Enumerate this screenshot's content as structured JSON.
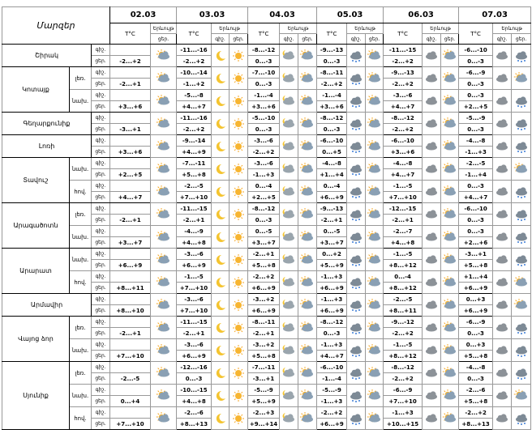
{
  "header": {
    "region": "Մարզեր",
    "temp": "T°C",
    "phenomenon": "Երևույթ",
    "night": "գիշ.",
    "day": "ցեր."
  },
  "dates": [
    "02.03",
    "03.03",
    "04.03",
    "05.03",
    "06.03",
    "07.03"
  ],
  "regions": [
    {
      "name": "Շիրակ",
      "zones": [
        {
          "temps": [
            [
              null,
              "-2...+2"
            ],
            [
              "-11...-16",
              "-2...+2"
            ],
            [
              "-8...-12",
              "0...-3"
            ],
            [
              "-9...-13",
              "0...-3"
            ],
            [
              "-11...-15",
              "-2...+2"
            ],
            [
              "-6...-10",
              "0...-3"
            ]
          ]
        }
      ]
    },
    {
      "name": "Կոտայք",
      "zones": [
        {
          "name": "լեռ.",
          "temps": [
            [
              null,
              "-2...+1"
            ],
            [
              "-10...-14",
              "-1...+2"
            ],
            [
              "-7...-10",
              "0...-3"
            ],
            [
              "-8...-11",
              "-2...+2"
            ],
            [
              "-9...-13",
              "-2...+2"
            ],
            [
              "-6...-9",
              "0...-3"
            ]
          ]
        },
        {
          "name": "նախ.",
          "temps": [
            [
              null,
              "+3...+6"
            ],
            [
              "-5...-8",
              "+4...+7"
            ],
            [
              "-1...-4",
              "+3...+6"
            ],
            [
              "-1...-4",
              "+3...+6"
            ],
            [
              "-3...-6",
              "+4...+7"
            ],
            [
              "0...-3",
              "+2...+5"
            ]
          ]
        }
      ]
    },
    {
      "name": "Գեղարքունիք",
      "zones": [
        {
          "temps": [
            [
              null,
              "-3...+1"
            ],
            [
              "-11...-16",
              "-2...+2"
            ],
            [
              "-5...-10",
              "0...-3"
            ],
            [
              "-8...-12",
              "0...-3"
            ],
            [
              "-8...-12",
              "-2...+2"
            ],
            [
              "-5...-9",
              "0...-3"
            ]
          ]
        }
      ]
    },
    {
      "name": "Լոռի",
      "zones": [
        {
          "temps": [
            [
              null,
              "+3...+6"
            ],
            [
              "-9...-14",
              "+4...+9"
            ],
            [
              "-3...-6",
              "-2...+2"
            ],
            [
              "-6...-10",
              "0...+5"
            ],
            [
              "-6...-10",
              "+3...+6"
            ],
            [
              "-4...-8",
              "-1...+3"
            ]
          ]
        }
      ]
    },
    {
      "name": "Տավուշ",
      "zones": [
        {
          "name": "նախ.",
          "temps": [
            [
              null,
              "+2...+5"
            ],
            [
              "-7...-11",
              "+5...+8"
            ],
            [
              "-3...-6",
              "-1...+3"
            ],
            [
              "-4...-8",
              "+1...+4"
            ],
            [
              "-4...-8",
              "+4...+7"
            ],
            [
              "-2...-5",
              "-1...+4"
            ]
          ]
        },
        {
          "name": "հով.",
          "temps": [
            [
              null,
              "+4...+7"
            ],
            [
              "-2...-5",
              "+7...+10"
            ],
            [
              "0...-4",
              "+2...+5"
            ],
            [
              "0...-4",
              "+6...+9"
            ],
            [
              "-1...-5",
              "+7...+10"
            ],
            [
              "0...-3",
              "+4...+7"
            ]
          ]
        }
      ]
    },
    {
      "name": "Արագածոտն",
      "zones": [
        {
          "name": "լեռ.",
          "temps": [
            [
              null,
              "-2...+1"
            ],
            [
              "-11...-15",
              "-2...+1"
            ],
            [
              "-8...-12",
              "0...-3"
            ],
            [
              "-9...-13",
              "-2...+1"
            ],
            [
              "-12...-15",
              "-2...+1"
            ],
            [
              "-6...-10",
              "0...-3"
            ]
          ]
        },
        {
          "name": "նախ.",
          "temps": [
            [
              null,
              "+3...+7"
            ],
            [
              "-4...-9",
              "+4...+8"
            ],
            [
              "0...-5",
              "+3...+7"
            ],
            [
              "0...-5",
              "+3...+7"
            ],
            [
              "-2...-7",
              "+4...+8"
            ],
            [
              "0...-3",
              "+2...+6"
            ]
          ]
        }
      ]
    },
    {
      "name": "Արարատ",
      "zones": [
        {
          "name": "նախ.",
          "temps": [
            [
              null,
              "+6...+9"
            ],
            [
              "-3...-6",
              "+6...+9"
            ],
            [
              "-2...+1",
              "+5...+8"
            ],
            [
              "0...+2",
              "+5...+9"
            ],
            [
              "-1...-5",
              "+8...+12"
            ],
            [
              "-3...+1",
              "+5...+8"
            ]
          ]
        },
        {
          "name": "հով.",
          "temps": [
            [
              null,
              "+8...+11"
            ],
            [
              "-1...-5",
              "+7...+10"
            ],
            [
              "-2...+2",
              "+6...+9"
            ],
            [
              "-1...+3",
              "+6...+9"
            ],
            [
              "0...-4",
              "+8...+12"
            ],
            [
              "+1...+4",
              "+6...+9"
            ]
          ]
        }
      ]
    },
    {
      "name": "Արմավիր",
      "zones": [
        {
          "temps": [
            [
              null,
              "+8...+10"
            ],
            [
              "-3...-6",
              "+7...+10"
            ],
            [
              "-3...+2",
              "+6...+9"
            ],
            [
              "-1...+3",
              "+6...+9"
            ],
            [
              "-2...-5",
              "+8...+11"
            ],
            [
              "0...+3",
              "+6...+9"
            ]
          ]
        }
      ]
    },
    {
      "name": "Վայոց ձոր",
      "zones": [
        {
          "name": "լեռ.",
          "temps": [
            [
              null,
              "-2...+1"
            ],
            [
              "-11...-15",
              "-2...+1"
            ],
            [
              "-8...-11",
              "-2...+1"
            ],
            [
              "-8...-12",
              "0...-3"
            ],
            [
              "-9...-12",
              "-2...+2"
            ],
            [
              "-6...-9",
              "0...-3"
            ]
          ]
        },
        {
          "name": "նախ.",
          "temps": [
            [
              null,
              "+7...+10"
            ],
            [
              "-3...-6",
              "+6...+9"
            ],
            [
              "-3...+2",
              "+5...+8"
            ],
            [
              "-1...+3",
              "+4...+7"
            ],
            [
              "-1...-5",
              "+8...+12"
            ],
            [
              "0...+3",
              "+5...+8"
            ]
          ]
        }
      ]
    },
    {
      "name": "Սյունիք",
      "zones": [
        {
          "name": "լեռ.",
          "temps": [
            [
              null,
              "-2...-5"
            ],
            [
              "-12...-16",
              "0...-3"
            ],
            [
              "-7...-11",
              "-3...+1"
            ],
            [
              "-6...-10",
              "-1...-4"
            ],
            [
              "-8...-12",
              "-2...+2"
            ],
            [
              "-4...-8",
              "0...-3"
            ]
          ]
        },
        {
          "name": "նախ.",
          "temps": [
            [
              null,
              "0...+4"
            ],
            [
              "-10...-15",
              "+4...+8"
            ],
            [
              "-5...-9",
              "+5...+9"
            ],
            [
              "-5...-9",
              "-1...+3"
            ],
            [
              "-6...-9",
              "+7...+10"
            ],
            [
              "-2...-6",
              "+5...+8"
            ]
          ]
        },
        {
          "name": "հով.",
          "temps": [
            [
              null,
              "+7...+10"
            ],
            [
              "-2...-6",
              "+8...+13"
            ],
            [
              "-2...+3",
              "+9...+14"
            ],
            [
              "-2...+2",
              "+6...+9"
            ],
            [
              "-1...+3",
              "+10...+15"
            ],
            [
              "-2...+2",
              "+8...+13"
            ]
          ]
        }
      ]
    }
  ]
}
